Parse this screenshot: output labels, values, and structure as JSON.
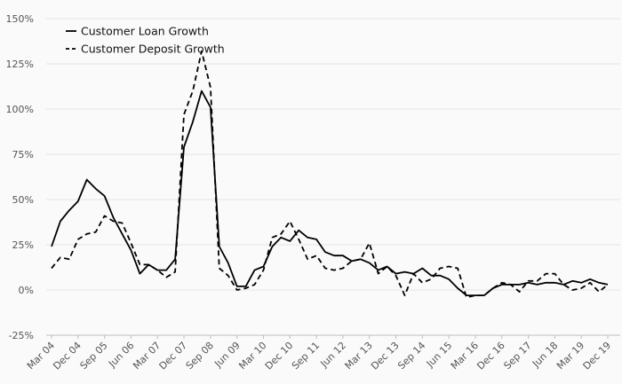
{
  "chart_data": {
    "type": "line",
    "title": "",
    "xlabel": "",
    "ylabel": "",
    "ylim": [
      -25,
      150
    ],
    "yticks": [
      -25,
      0,
      25,
      50,
      75,
      100,
      125,
      150
    ],
    "ytick_format": "percent",
    "grid": true,
    "legend_position": "top-left",
    "xticks": [
      "Mar 04",
      "Dec 04",
      "Sep 05",
      "Jun 06",
      "Mar 07",
      "Dec 07",
      "Sep 08",
      "Jun 09",
      "Mar 10",
      "Dec 10",
      "Sep 11",
      "Jun 12",
      "Mar 13",
      "Dec 13",
      "Sep 14",
      "Jun 15",
      "Mar 16",
      "Dec 16",
      "Sep 17",
      "Jun 18",
      "Mar 19",
      "Dec 19"
    ],
    "x": [
      "Mar 04",
      "Jun 04",
      "Sep 04",
      "Dec 04",
      "Mar 05",
      "Jun 05",
      "Sep 05",
      "Dec 05",
      "Mar 06",
      "Jun 06",
      "Sep 06",
      "Dec 06",
      "Mar 07",
      "Jun 07",
      "Sep 07",
      "Dec 07",
      "Mar 08",
      "Jun 08",
      "Sep 08",
      "Dec 08",
      "Mar 09",
      "Jun 09",
      "Sep 09",
      "Dec 09",
      "Mar 10",
      "Jun 10",
      "Sep 10",
      "Dec 10",
      "Mar 11",
      "Jun 11",
      "Sep 11",
      "Dec 11",
      "Mar 12",
      "Jun 12",
      "Sep 12",
      "Dec 12",
      "Mar 13",
      "Jun 13",
      "Sep 13",
      "Dec 13",
      "Mar 14",
      "Jun 14",
      "Sep 14",
      "Dec 14",
      "Mar 15",
      "Jun 15",
      "Sep 15",
      "Dec 15",
      "Mar 16",
      "Jun 16",
      "Sep 16",
      "Dec 16",
      "Mar 17",
      "Jun 17",
      "Sep 17",
      "Dec 17",
      "Mar 18",
      "Jun 18",
      "Sep 18",
      "Dec 18",
      "Mar 19",
      "Jun 19",
      "Sep 19",
      "Dec 19"
    ],
    "series": [
      {
        "name": "Customer Loan Growth",
        "dash": "solid",
        "color": "#000000",
        "values": [
          24,
          38,
          44,
          49,
          61,
          56,
          52,
          40,
          31,
          22,
          9,
          14,
          11,
          11,
          17,
          79,
          93,
          110,
          101,
          24,
          15,
          2,
          2,
          11,
          13,
          24,
          29,
          27,
          33,
          29,
          28,
          21,
          19,
          19,
          16,
          17,
          15,
          11,
          13,
          9,
          10,
          9,
          12,
          8,
          8,
          6,
          1,
          -3,
          -3,
          -3,
          1,
          3,
          3,
          3,
          4,
          3,
          4,
          4,
          3,
          5,
          4,
          6,
          4,
          3
        ]
      },
      {
        "name": "Customer Deposit Growth",
        "dash": "dashed",
        "color": "#000000",
        "values": [
          12,
          18,
          17,
          28,
          31,
          32,
          41,
          38,
          37,
          26,
          14,
          14,
          11,
          7,
          10,
          97,
          110,
          132,
          112,
          12,
          8,
          0,
          1,
          3,
          11,
          29,
          31,
          38,
          28,
          17,
          19,
          12,
          11,
          12,
          16,
          17,
          26,
          9,
          13,
          8,
          -3,
          9,
          4,
          6,
          12,
          13,
          12,
          -4,
          -3,
          -3,
          1,
          4,
          3,
          -1,
          5,
          5,
          9,
          9,
          3,
          0,
          1,
          4,
          -1,
          3
        ]
      }
    ]
  }
}
